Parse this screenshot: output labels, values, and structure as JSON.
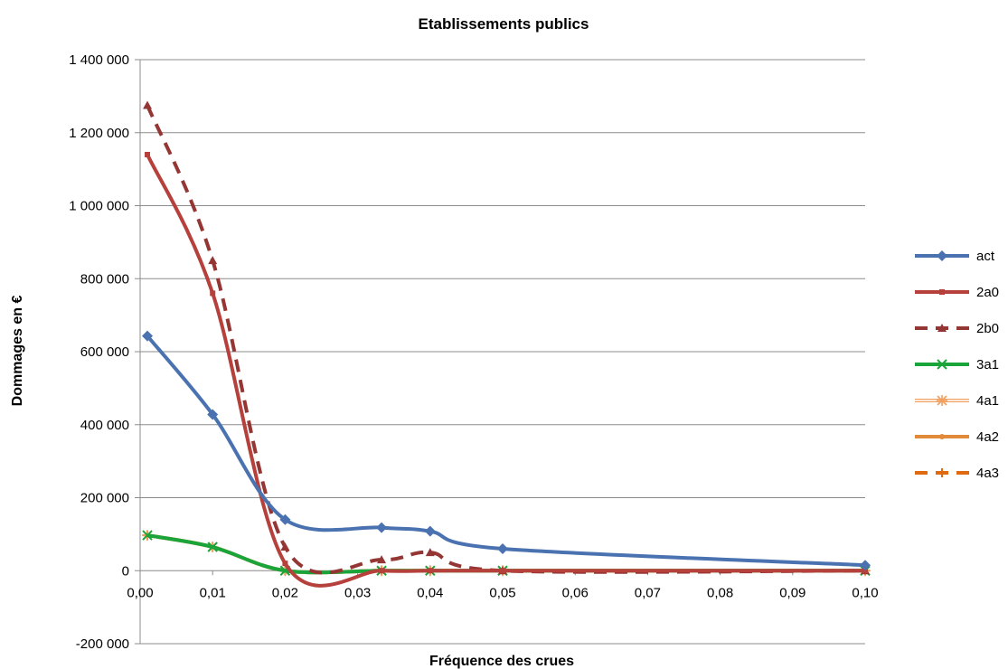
{
  "chart_data": {
    "type": "line",
    "title": "Etablissements publics",
    "xlabel": "Fréquence des crues",
    "ylabel": "Dommages en €",
    "xlim": [
      0,
      0.1
    ],
    "ylim": [
      -200000,
      1400000
    ],
    "x_ticks": [
      "0,00",
      "0,01",
      "0,02",
      "0,03",
      "0,04",
      "0,05",
      "0,06",
      "0,07",
      "0,08",
      "0,09",
      "0,10"
    ],
    "y_ticks": [
      "1 400 000",
      "1 200 000",
      "1 000 000",
      "800 000",
      "600 000",
      "400 000",
      "200 000",
      "0",
      "-200 000"
    ],
    "grid": true,
    "legend_position": "right",
    "series": [
      {
        "name": "act",
        "color": "#4a72b0",
        "dash": "solid",
        "marker": "diamond",
        "points": [
          [
            0.001,
            643000
          ],
          [
            0.01,
            428000
          ],
          [
            0.02,
            140000
          ],
          [
            0.0333,
            118000
          ],
          [
            0.04,
            108000
          ],
          [
            0.05,
            60000
          ],
          [
            0.1,
            15000
          ]
        ]
      },
      {
        "name": "2a0",
        "color": "#b5403c",
        "dash": "solid",
        "marker": "square",
        "points": [
          [
            0.001,
            1140000
          ],
          [
            0.01,
            760000
          ],
          [
            0.02,
            20000
          ],
          [
            0.0333,
            0
          ],
          [
            0.04,
            0
          ],
          [
            0.05,
            0
          ],
          [
            0.1,
            0
          ]
        ]
      },
      {
        "name": "2b0",
        "color": "#943634",
        "dash": "dashed",
        "marker": "triangle",
        "points": [
          [
            0.001,
            1275000
          ],
          [
            0.01,
            850000
          ],
          [
            0.02,
            65000
          ],
          [
            0.0333,
            30000
          ],
          [
            0.04,
            50000
          ],
          [
            0.05,
            0
          ],
          [
            0.1,
            0
          ]
        ]
      },
      {
        "name": "3a1",
        "color": "#1aa53a",
        "dash": "solid",
        "marker": "x",
        "points": [
          [
            0.001,
            97000
          ],
          [
            0.01,
            65000
          ],
          [
            0.02,
            0
          ],
          [
            0.0333,
            0
          ],
          [
            0.04,
            0
          ],
          [
            0.05,
            0
          ],
          [
            0.1,
            0
          ]
        ]
      },
      {
        "name": "4a1",
        "color": "#f0a060",
        "dash": "double",
        "marker": "star",
        "points": [
          [
            0.001,
            97000
          ],
          [
            0.01,
            65000
          ],
          [
            0.02,
            0
          ],
          [
            0.0333,
            0
          ],
          [
            0.04,
            0
          ],
          [
            0.05,
            0
          ],
          [
            0.1,
            0
          ]
        ]
      },
      {
        "name": "4a2",
        "color": "#e08a3a",
        "dash": "solid",
        "marker": "circle",
        "points": [
          [
            0.001,
            97000
          ],
          [
            0.01,
            65000
          ],
          [
            0.02,
            0
          ],
          [
            0.0333,
            0
          ],
          [
            0.04,
            0
          ],
          [
            0.05,
            0
          ],
          [
            0.1,
            0
          ]
        ]
      },
      {
        "name": "4a3",
        "color": "#e06a10",
        "dash": "dashed",
        "marker": "plus",
        "points": [
          [
            0.001,
            97000
          ],
          [
            0.01,
            65000
          ],
          [
            0.02,
            0
          ],
          [
            0.0333,
            0
          ],
          [
            0.04,
            0
          ],
          [
            0.05,
            0
          ],
          [
            0.1,
            0
          ]
        ]
      }
    ]
  }
}
